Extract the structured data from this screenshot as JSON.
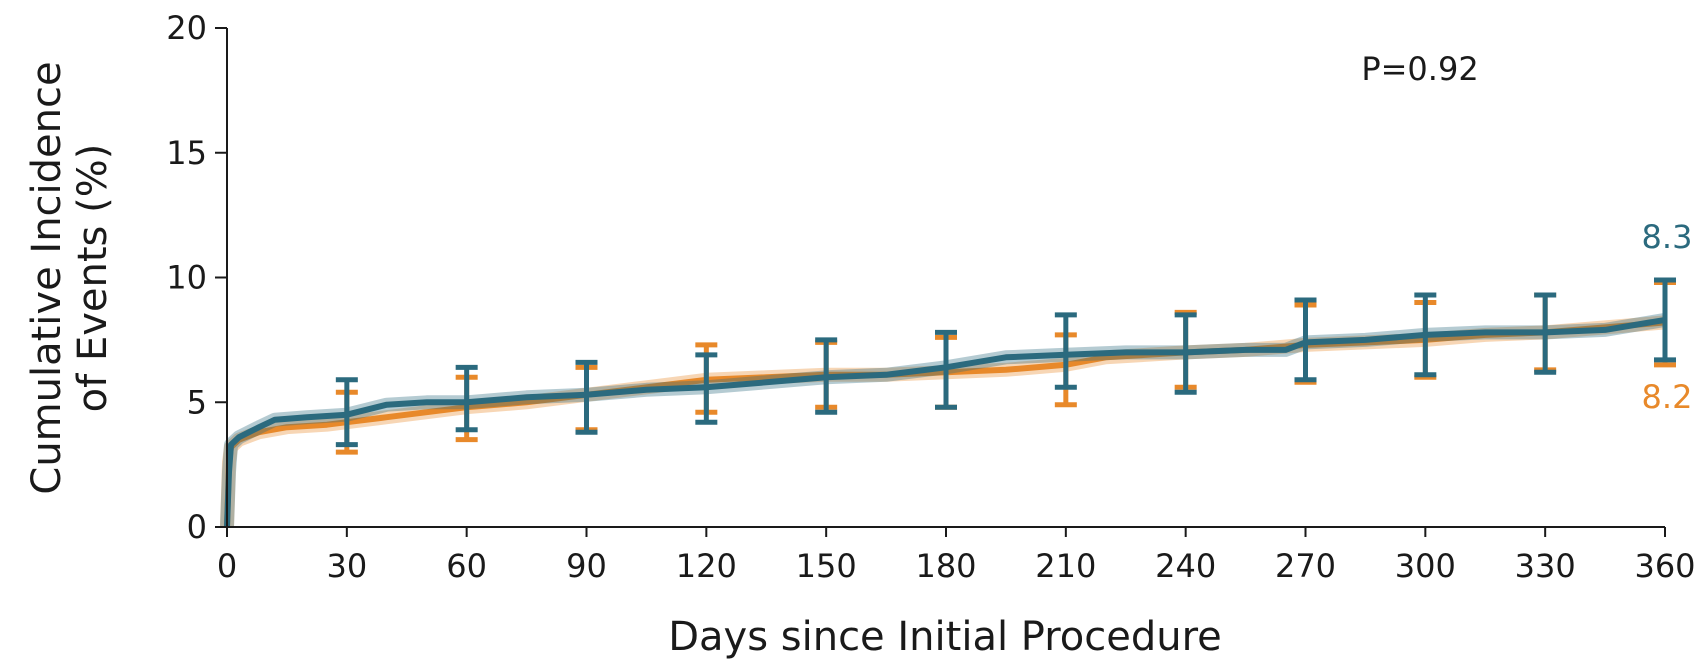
{
  "chart_data": {
    "type": "line",
    "title": "",
    "xlabel": "Days since Initial Procedure",
    "ylabel_line1": "Cumulative Incidence",
    "ylabel_line2": "of Events (%)",
    "xlim": [
      0,
      360
    ],
    "ylim": [
      0,
      20
    ],
    "x_ticks": [
      0,
      30,
      60,
      90,
      120,
      150,
      180,
      210,
      240,
      270,
      300,
      330,
      360
    ],
    "y_ticks": [
      0,
      5,
      10,
      15,
      20
    ],
    "grid": false,
    "annotation": "P=0.92",
    "series": [
      {
        "color": "#e8892a",
        "end_label": "8.2",
        "points": [
          [
            0,
            0
          ],
          [
            0.5,
            2.6
          ],
          [
            1,
            3.2
          ],
          [
            3,
            3.5
          ],
          [
            8,
            3.8
          ],
          [
            15,
            4.0
          ],
          [
            25,
            4.1
          ],
          [
            30,
            4.2
          ],
          [
            40,
            4.4
          ],
          [
            50,
            4.6
          ],
          [
            60,
            4.8
          ],
          [
            75,
            5.0
          ],
          [
            90,
            5.3
          ],
          [
            105,
            5.6
          ],
          [
            120,
            5.9
          ],
          [
            135,
            6.0
          ],
          [
            150,
            6.1
          ],
          [
            165,
            6.1
          ],
          [
            180,
            6.2
          ],
          [
            195,
            6.3
          ],
          [
            210,
            6.5
          ],
          [
            220,
            6.8
          ],
          [
            240,
            7.0
          ],
          [
            255,
            7.1
          ],
          [
            270,
            7.3
          ],
          [
            285,
            7.4
          ],
          [
            300,
            7.5
          ],
          [
            315,
            7.7
          ],
          [
            330,
            7.8
          ],
          [
            345,
            8.0
          ],
          [
            360,
            8.2
          ]
        ],
        "error_bars": [
          {
            "x": 30,
            "low": 3.0,
            "high": 5.4
          },
          {
            "x": 60,
            "low": 3.5,
            "high": 6.0
          },
          {
            "x": 90,
            "low": 3.9,
            "high": 6.4
          },
          {
            "x": 120,
            "low": 4.6,
            "high": 7.3
          },
          {
            "x": 150,
            "low": 4.8,
            "high": 7.4
          },
          {
            "x": 180,
            "low": 4.8,
            "high": 7.6
          },
          {
            "x": 210,
            "low": 4.9,
            "high": 7.7
          },
          {
            "x": 240,
            "low": 5.6,
            "high": 8.6
          },
          {
            "x": 270,
            "low": 5.8,
            "high": 8.9
          },
          {
            "x": 300,
            "low": 6.0,
            "high": 9.0
          },
          {
            "x": 330,
            "low": 6.3,
            "high": 9.3
          },
          {
            "x": 360,
            "low": 6.5,
            "high": 9.8
          }
        ]
      },
      {
        "color": "#2b6a7e",
        "end_label": "8.3",
        "points": [
          [
            0,
            0
          ],
          [
            0.5,
            2.2
          ],
          [
            1,
            3.3
          ],
          [
            3,
            3.6
          ],
          [
            8,
            4.0
          ],
          [
            12,
            4.3
          ],
          [
            20,
            4.4
          ],
          [
            30,
            4.5
          ],
          [
            40,
            4.9
          ],
          [
            50,
            5.0
          ],
          [
            60,
            5.0
          ],
          [
            75,
            5.2
          ],
          [
            90,
            5.3
          ],
          [
            105,
            5.5
          ],
          [
            120,
            5.6
          ],
          [
            135,
            5.8
          ],
          [
            150,
            6.0
          ],
          [
            165,
            6.1
          ],
          [
            180,
            6.4
          ],
          [
            195,
            6.8
          ],
          [
            210,
            6.9
          ],
          [
            225,
            7.0
          ],
          [
            240,
            7.0
          ],
          [
            255,
            7.1
          ],
          [
            265,
            7.1
          ],
          [
            270,
            7.4
          ],
          [
            285,
            7.5
          ],
          [
            300,
            7.7
          ],
          [
            315,
            7.8
          ],
          [
            330,
            7.8
          ],
          [
            345,
            7.9
          ],
          [
            360,
            8.3
          ]
        ],
        "error_bars": [
          {
            "x": 30,
            "low": 3.3,
            "high": 5.9
          },
          {
            "x": 60,
            "low": 3.9,
            "high": 6.4
          },
          {
            "x": 90,
            "low": 3.8,
            "high": 6.6
          },
          {
            "x": 120,
            "low": 4.2,
            "high": 6.9
          },
          {
            "x": 150,
            "low": 4.6,
            "high": 7.5
          },
          {
            "x": 180,
            "low": 4.8,
            "high": 7.8
          },
          {
            "x": 210,
            "low": 5.6,
            "high": 8.5
          },
          {
            "x": 240,
            "low": 5.4,
            "high": 8.5
          },
          {
            "x": 270,
            "low": 5.9,
            "high": 9.1
          },
          {
            "x": 300,
            "low": 6.1,
            "high": 9.3
          },
          {
            "x": 330,
            "low": 6.2,
            "high": 9.3
          },
          {
            "x": 360,
            "low": 6.7,
            "high": 9.9
          }
        ]
      }
    ]
  }
}
